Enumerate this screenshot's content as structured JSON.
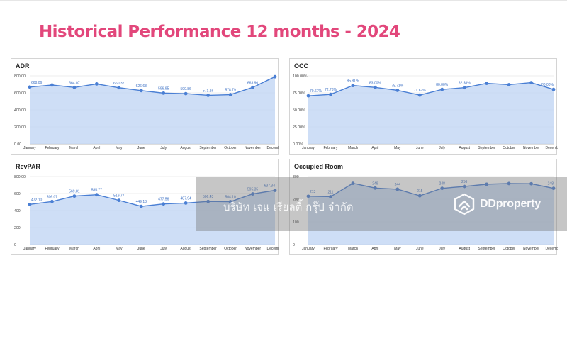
{
  "page": {
    "title": "Historical Performance 12 months - 2024",
    "watermark_company": "บริษัท เจแ   เรียลตี้ กรุ๊ป จำกัด",
    "watermark_brand": "DDproperty",
    "colors": {
      "title": "#e2477b",
      "line": "#4a7fd4",
      "fill": "#c5d8f5"
    }
  },
  "chart_data": [
    {
      "type": "area",
      "title": "ADR",
      "categories": [
        "January",
        "February",
        "March",
        "April",
        "May",
        "June",
        "July",
        "August",
        "September",
        "October",
        "November",
        "December"
      ],
      "values": [
        668.06,
        692,
        664.07,
        705,
        660.37,
        626.68,
        596.95,
        590.86,
        571.16,
        578.79,
        663.96,
        790
      ],
      "labels": [
        "668.06",
        "",
        "664.07",
        "",
        "660.37",
        "626.68",
        "596.95",
        "590.86",
        "571.16",
        "578.79",
        "663.96",
        ""
      ],
      "yticks": [
        "0.00",
        "200.00",
        "400.00",
        "600.00",
        "800.00"
      ],
      "ylim": [
        0,
        800
      ]
    },
    {
      "type": "area",
      "title": "OCC",
      "categories": [
        "January",
        "February",
        "March",
        "April",
        "May",
        "June",
        "July",
        "August",
        "September",
        "October",
        "November",
        "December"
      ],
      "values": [
        70.67,
        72.76,
        85.81,
        83.0,
        78.71,
        71.67,
        80.0,
        82.58,
        89,
        87,
        90,
        80.0
      ],
      "labels": [
        "70.67%",
        "72.76%",
        "85.81%",
        "83.00%",
        "78.71%",
        "71.67%",
        "80.00%",
        "82.58%",
        "",
        "",
        "",
        "80.00%"
      ],
      "yticks": [
        "0.00%",
        "25.00%",
        "50.00%",
        "75.00%",
        "100.00%"
      ],
      "ylim": [
        0,
        100
      ]
    },
    {
      "type": "area",
      "title": "RevPAR",
      "categories": [
        "January",
        "February",
        "March",
        "April",
        "May",
        "June",
        "July",
        "August",
        "September",
        "October",
        "November",
        "December"
      ],
      "values": [
        472.1,
        506.07,
        569.81,
        585.77,
        519.77,
        449.13,
        477.56,
        487.94,
        506.43,
        504.1,
        595.35,
        637.34
      ],
      "labels": [
        "472.10",
        "506.07",
        "569.81",
        "585.77",
        "519.77",
        "449.13",
        "477.56",
        "487.94",
        "506.43",
        "504.10",
        "595.35",
        "637.34"
      ],
      "yticks": [
        "0",
        "200",
        "400",
        "600",
        "800.00"
      ],
      "ylim": [
        0,
        800
      ]
    },
    {
      "type": "area",
      "title": "Occupied Room",
      "categories": [
        "January",
        "February",
        "March",
        "April",
        "May",
        "June",
        "July",
        "August",
        "September",
        "October",
        "November",
        "December"
      ],
      "values": [
        213,
        211,
        270,
        249,
        244,
        215,
        248,
        256,
        266,
        269,
        268,
        248
      ],
      "labels": [
        "213",
        "211",
        "",
        "249",
        "244",
        "215",
        "248",
        "256",
        "",
        "",
        "",
        "248"
      ],
      "yticks": [
        "0",
        "100",
        "200",
        "300"
      ],
      "ylim": [
        0,
        300
      ]
    }
  ]
}
